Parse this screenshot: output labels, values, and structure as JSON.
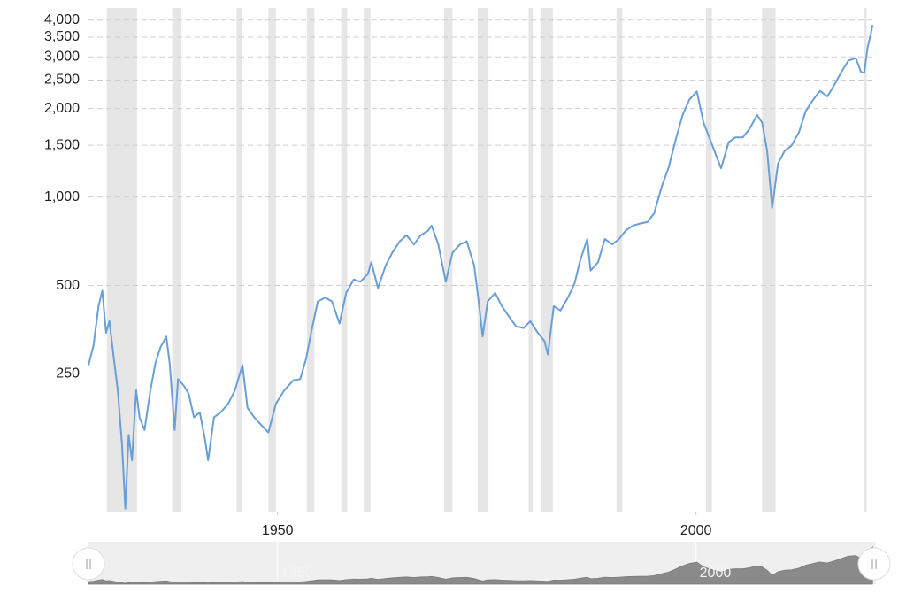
{
  "chart_data": {
    "type": "line",
    "log_y": true,
    "grid": true,
    "color": "#6a9fd6",
    "band_color": "#e6e6e6",
    "shaded_ranges": [
      [
        1929.6,
        1933.2
      ],
      [
        1937.4,
        1938.5
      ],
      [
        1945.1,
        1945.8
      ],
      [
        1948.9,
        1949.8
      ],
      [
        1953.5,
        1954.4
      ],
      [
        1957.6,
        1958.3
      ],
      [
        1960.3,
        1961.1
      ],
      [
        1969.9,
        1970.9
      ],
      [
        1973.9,
        1975.2
      ],
      [
        1980.0,
        1980.5
      ],
      [
        1981.5,
        1982.9
      ],
      [
        1990.5,
        1991.2
      ],
      [
        2001.2,
        2001.9
      ],
      [
        2007.9,
        2009.5
      ],
      [
        2020.1,
        2020.4
      ]
    ],
    "xlim": [
      1927.4,
      2021.5
    ],
    "xticks": [
      1950,
      2000
    ],
    "ylim": [
      85,
      4400
    ],
    "yticks": [
      250,
      500,
      {
        "value": 1000,
        "label": "1,000"
      },
      {
        "value": 1500,
        "label": "1,500"
      },
      {
        "value": 2000,
        "label": "2,000"
      },
      {
        "value": 2500,
        "label": "2,500"
      },
      {
        "value": 3000,
        "label": "3,000"
      },
      {
        "value": 3500,
        "label": "3,500"
      },
      {
        "value": 4000,
        "label": "4,000"
      }
    ],
    "x": [
      1927.4,
      1928.0,
      1928.6,
      1929.05,
      1929.5,
      1929.9,
      1930.5,
      1930.9,
      1931.4,
      1931.8,
      1932.2,
      1932.6,
      1933.1,
      1933.5,
      1934.1,
      1934.8,
      1935.4,
      1936.0,
      1936.7,
      1937.1,
      1937.7,
      1938.1,
      1938.8,
      1939.4,
      1940.0,
      1940.7,
      1941.3,
      1941.7,
      1942.4,
      1943.2,
      1944.1,
      1944.9,
      1945.8,
      1946.4,
      1947.2,
      1948.1,
      1948.9,
      1949.8,
      1950.8,
      1951.9,
      1952.7,
      1953.4,
      1954.0,
      1954.8,
      1955.7,
      1956.5,
      1957.4,
      1958.2,
      1959.1,
      1959.9,
      1960.8,
      1961.2,
      1962.0,
      1962.9,
      1963.7,
      1964.6,
      1965.4,
      1966.3,
      1967.1,
      1968.0,
      1968.4,
      1969.2,
      1970.1,
      1970.9,
      1971.8,
      1972.6,
      1973.5,
      1974.1,
      1974.5,
      1975.1,
      1976.0,
      1976.8,
      1977.7,
      1978.5,
      1979.4,
      1980.2,
      1981.1,
      1981.9,
      1982.3,
      1983.0,
      1983.8,
      1984.7,
      1985.5,
      1986.1,
      1987.0,
      1987.4,
      1988.3,
      1989.1,
      1990.0,
      1990.8,
      1991.6,
      1992.5,
      1993.3,
      1994.2,
      1995.0,
      1995.9,
      1996.7,
      1997.5,
      1998.4,
      1999.2,
      2000.1,
      2000.9,
      2001.8,
      2002.6,
      2003.0,
      2003.9,
      2004.7,
      2005.6,
      2006.4,
      2007.3,
      2007.9,
      2008.5,
      2009.1,
      2009.8,
      2010.6,
      2011.4,
      2012.3,
      2013.1,
      2014.0,
      2014.8,
      2015.7,
      2016.5,
      2017.4,
      2018.2,
      2019.1,
      2019.7,
      2020.1,
      2020.5,
      2020.9,
      2021.1
    ],
    "values": [
      268,
      312,
      425,
      480,
      345,
      378,
      272,
      220,
      145,
      87,
      155,
      127,
      220,
      178,
      161,
      220,
      272,
      308,
      335,
      272,
      161,
      240,
      228,
      213,
      178,
      185,
      151,
      127,
      178,
      185,
      198,
      220,
      268,
      192,
      178,
      167,
      158,
      198,
      220,
      238,
      240,
      281,
      345,
      441,
      455,
      441,
      371,
      472,
      524,
      515,
      548,
      600,
      490,
      583,
      646,
      707,
      741,
      690,
      741,
      769,
      800,
      690,
      515,
      646,
      690,
      707,
      583,
      425,
      335,
      441,
      472,
      425,
      390,
      363,
      358,
      378,
      345,
      323,
      291,
      425,
      411,
      455,
      509,
      600,
      720,
      562,
      600,
      720,
      690,
      720,
      769,
      800,
      812,
      822,
      880,
      1084,
      1253,
      1538,
      1902,
      2143,
      2287,
      1791,
      1538,
      1340,
      1253,
      1538,
      1595,
      1595,
      1706,
      1902,
      1791,
      1437,
      919,
      1300,
      1437,
      1493,
      1660,
      1958,
      2143,
      2297,
      2200,
      2400,
      2670,
      2910,
      2970,
      2670,
      2640,
      3220,
      3600,
      3850
    ]
  }
}
